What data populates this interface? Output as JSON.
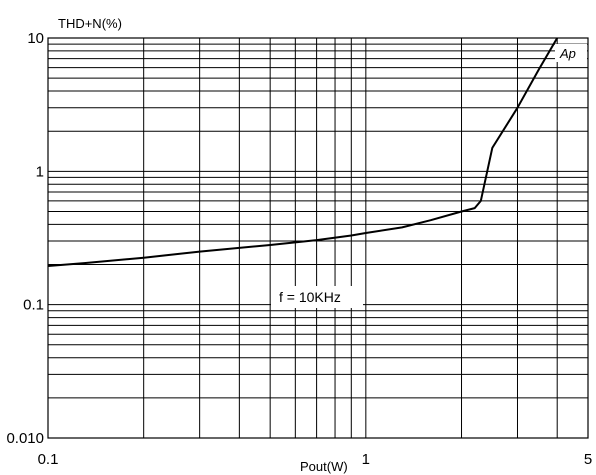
{
  "chart_data": {
    "type": "line",
    "x_scale": "log",
    "y_scale": "log",
    "xlim": [
      0.1,
      5
    ],
    "ylim": [
      0.01,
      10
    ],
    "ylabel": "THD+N(%)",
    "xlabel": "Pout(W)",
    "x_tick_labels": [
      "0.1",
      "1",
      "5"
    ],
    "x_tick_values": [
      0.1,
      1,
      5
    ],
    "y_tick_labels": [
      "0.010",
      "0.1",
      "1",
      "10"
    ],
    "y_tick_values": [
      0.01,
      0.1,
      1,
      10
    ],
    "grid": true,
    "series": [
      {
        "color": "#000000",
        "x": [
          0.1,
          0.13,
          0.2,
          0.3,
          0.5,
          0.7,
          0.9,
          1.0,
          1.3,
          1.6,
          2.0,
          2.2,
          2.3,
          2.5,
          3.0,
          3.5,
          4.0
        ],
        "y": [
          0.195,
          0.205,
          0.225,
          0.25,
          0.28,
          0.305,
          0.33,
          0.345,
          0.38,
          0.43,
          0.5,
          0.53,
          0.6,
          1.5,
          3.0,
          5.8,
          10.0
        ]
      }
    ],
    "annotations": [
      {
        "text": "f = 10KHz",
        "x": 0.53,
        "y": 0.165
      },
      {
        "text": "Ap",
        "x": 4.45,
        "y": 7.4
      }
    ]
  }
}
